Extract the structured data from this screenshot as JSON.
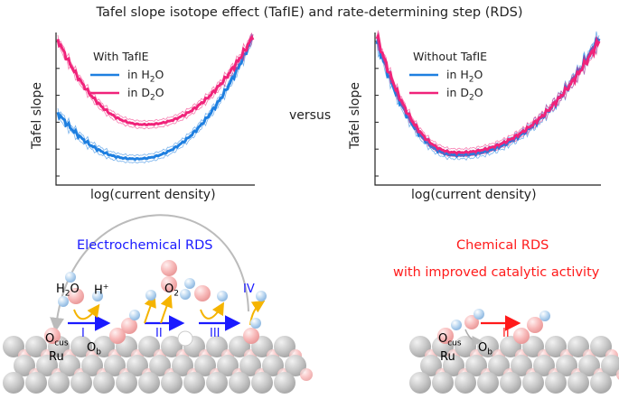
{
  "title": "Tafel slope isotope effect (TafIE) and rate-determining step (RDS)",
  "left_plot": {
    "ylabel": "Tafel slope",
    "xlabel": "log(current density)",
    "legend_title": "With TafIE",
    "series": [
      {
        "label_pre": "in H",
        "sub": "2",
        "label_post": "O",
        "color": "#1e7fe0"
      },
      {
        "label_pre": "in D",
        "sub": "2",
        "label_post": "O",
        "color": "#f0237a"
      }
    ]
  },
  "right_plot": {
    "ylabel": "Tafel slope",
    "xlabel": "log(current density)",
    "legend_title": "Without TafIE",
    "series": [
      {
        "label_pre": "in H",
        "sub": "2",
        "label_post": "O",
        "color": "#1e7fe0"
      },
      {
        "label_pre": "in D",
        "sub": "2",
        "label_post": "O",
        "color": "#f0237a"
      }
    ]
  },
  "versus": "versus",
  "electrochemical": {
    "title": "Electrochemical RDS",
    "color": "#1a1aff",
    "steps": [
      "I",
      "II",
      "III",
      "IV"
    ],
    "labels": {
      "h2o_pre": "H",
      "h2o_sub": "2",
      "h2o_post": "O",
      "h_plus": "H",
      "h_sup": "+",
      "o2_pre": "O",
      "o2_sub": "2",
      "ocus": "O",
      "ocus_sub": "cus",
      "ru": "Ru",
      "ob": "O",
      "ob_sub": "b"
    }
  },
  "chemical": {
    "title_line1": "Chemical RDS",
    "title_line2": "with improved catalytic activity",
    "color": "#ff1a1a",
    "step": "II",
    "labels": {
      "ocus": "O",
      "ocus_sub": "cus",
      "ru": "Ru",
      "ob": "O",
      "ob_sub": "b"
    }
  }
}
